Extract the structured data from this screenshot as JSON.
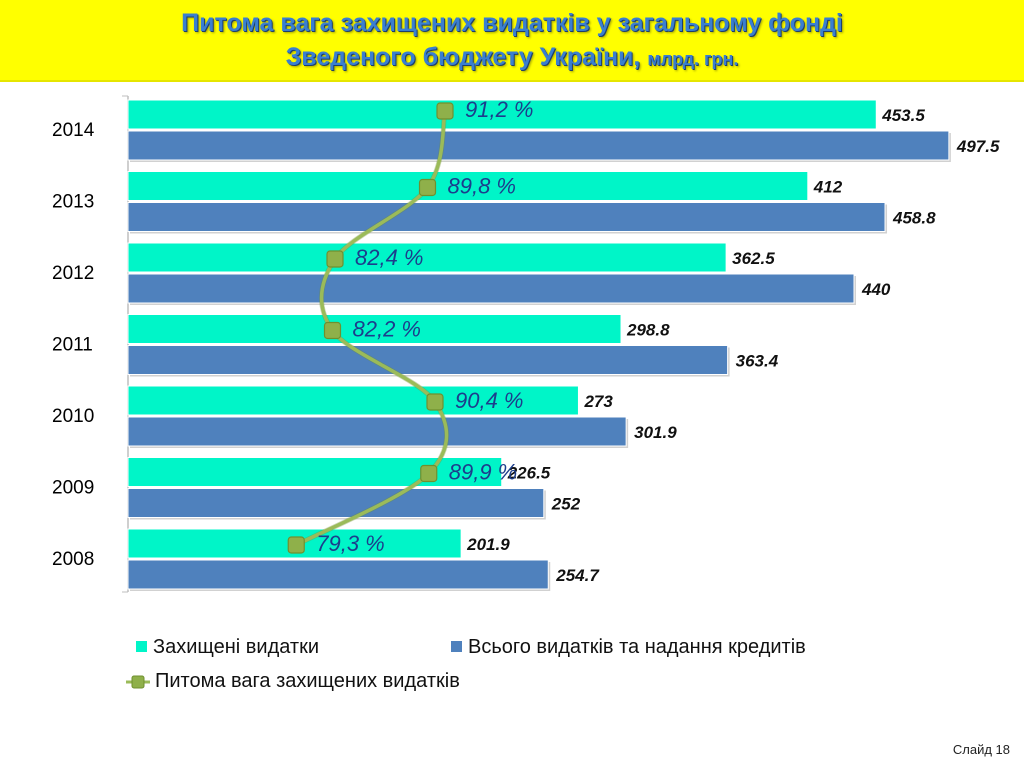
{
  "title": {
    "line1": "Питома вага захищених видатків у загальному фонді",
    "line2": "Зведеного бюджету України,",
    "units": "млрд. грн."
  },
  "colors": {
    "title_bg": "#ffff00",
    "title_text": "#3a7fd0",
    "protected": "#00f5c8",
    "total": "#4f81bd",
    "share_line": "#9bbb59",
    "share_marker": "#8fb04a",
    "pct_text": "#1c3d8c"
  },
  "chart_data": {
    "type": "bar",
    "orientation": "horizontal",
    "categories": [
      "2014",
      "2013",
      "2012",
      "2011",
      "2010",
      "2009",
      "2008"
    ],
    "series": [
      {
        "name": "Захищені видатки",
        "values": [
          453.5,
          412,
          362.5,
          298.8,
          273,
          226.5,
          201.9
        ],
        "labels": [
          "453.5",
          "412",
          "362.5",
          "298.8",
          "273",
          "226.5",
          "201.9"
        ]
      },
      {
        "name": "Всього видатків та надання кредитів",
        "values": [
          497.5,
          458.8,
          440,
          363.4,
          301.9,
          252,
          254.7
        ],
        "labels": [
          "497.5",
          "458.8",
          "440",
          "363.4",
          "301.9",
          "252",
          "254.7"
        ]
      },
      {
        "name": "Питома вага захищених видатків",
        "type": "line",
        "values": [
          91.2,
          89.8,
          82.4,
          82.2,
          90.4,
          89.9,
          79.3
        ],
        "labels": [
          "91,2 %",
          "89,8 %",
          "82,4 %",
          "82,2 %",
          "90,4 %",
          "89,9 %",
          "79,3 %"
        ]
      }
    ],
    "xlim": [
      0,
      500
    ],
    "share_axis_range": [
      70,
      100
    ],
    "legend_placement": "bottom",
    "grid": false
  },
  "legend": {
    "protected": "Захищені видатки",
    "total": "Всього видатків та надання кредитів",
    "share": "Питома вага захищених видатків"
  },
  "slide_number": "Слайд 18"
}
